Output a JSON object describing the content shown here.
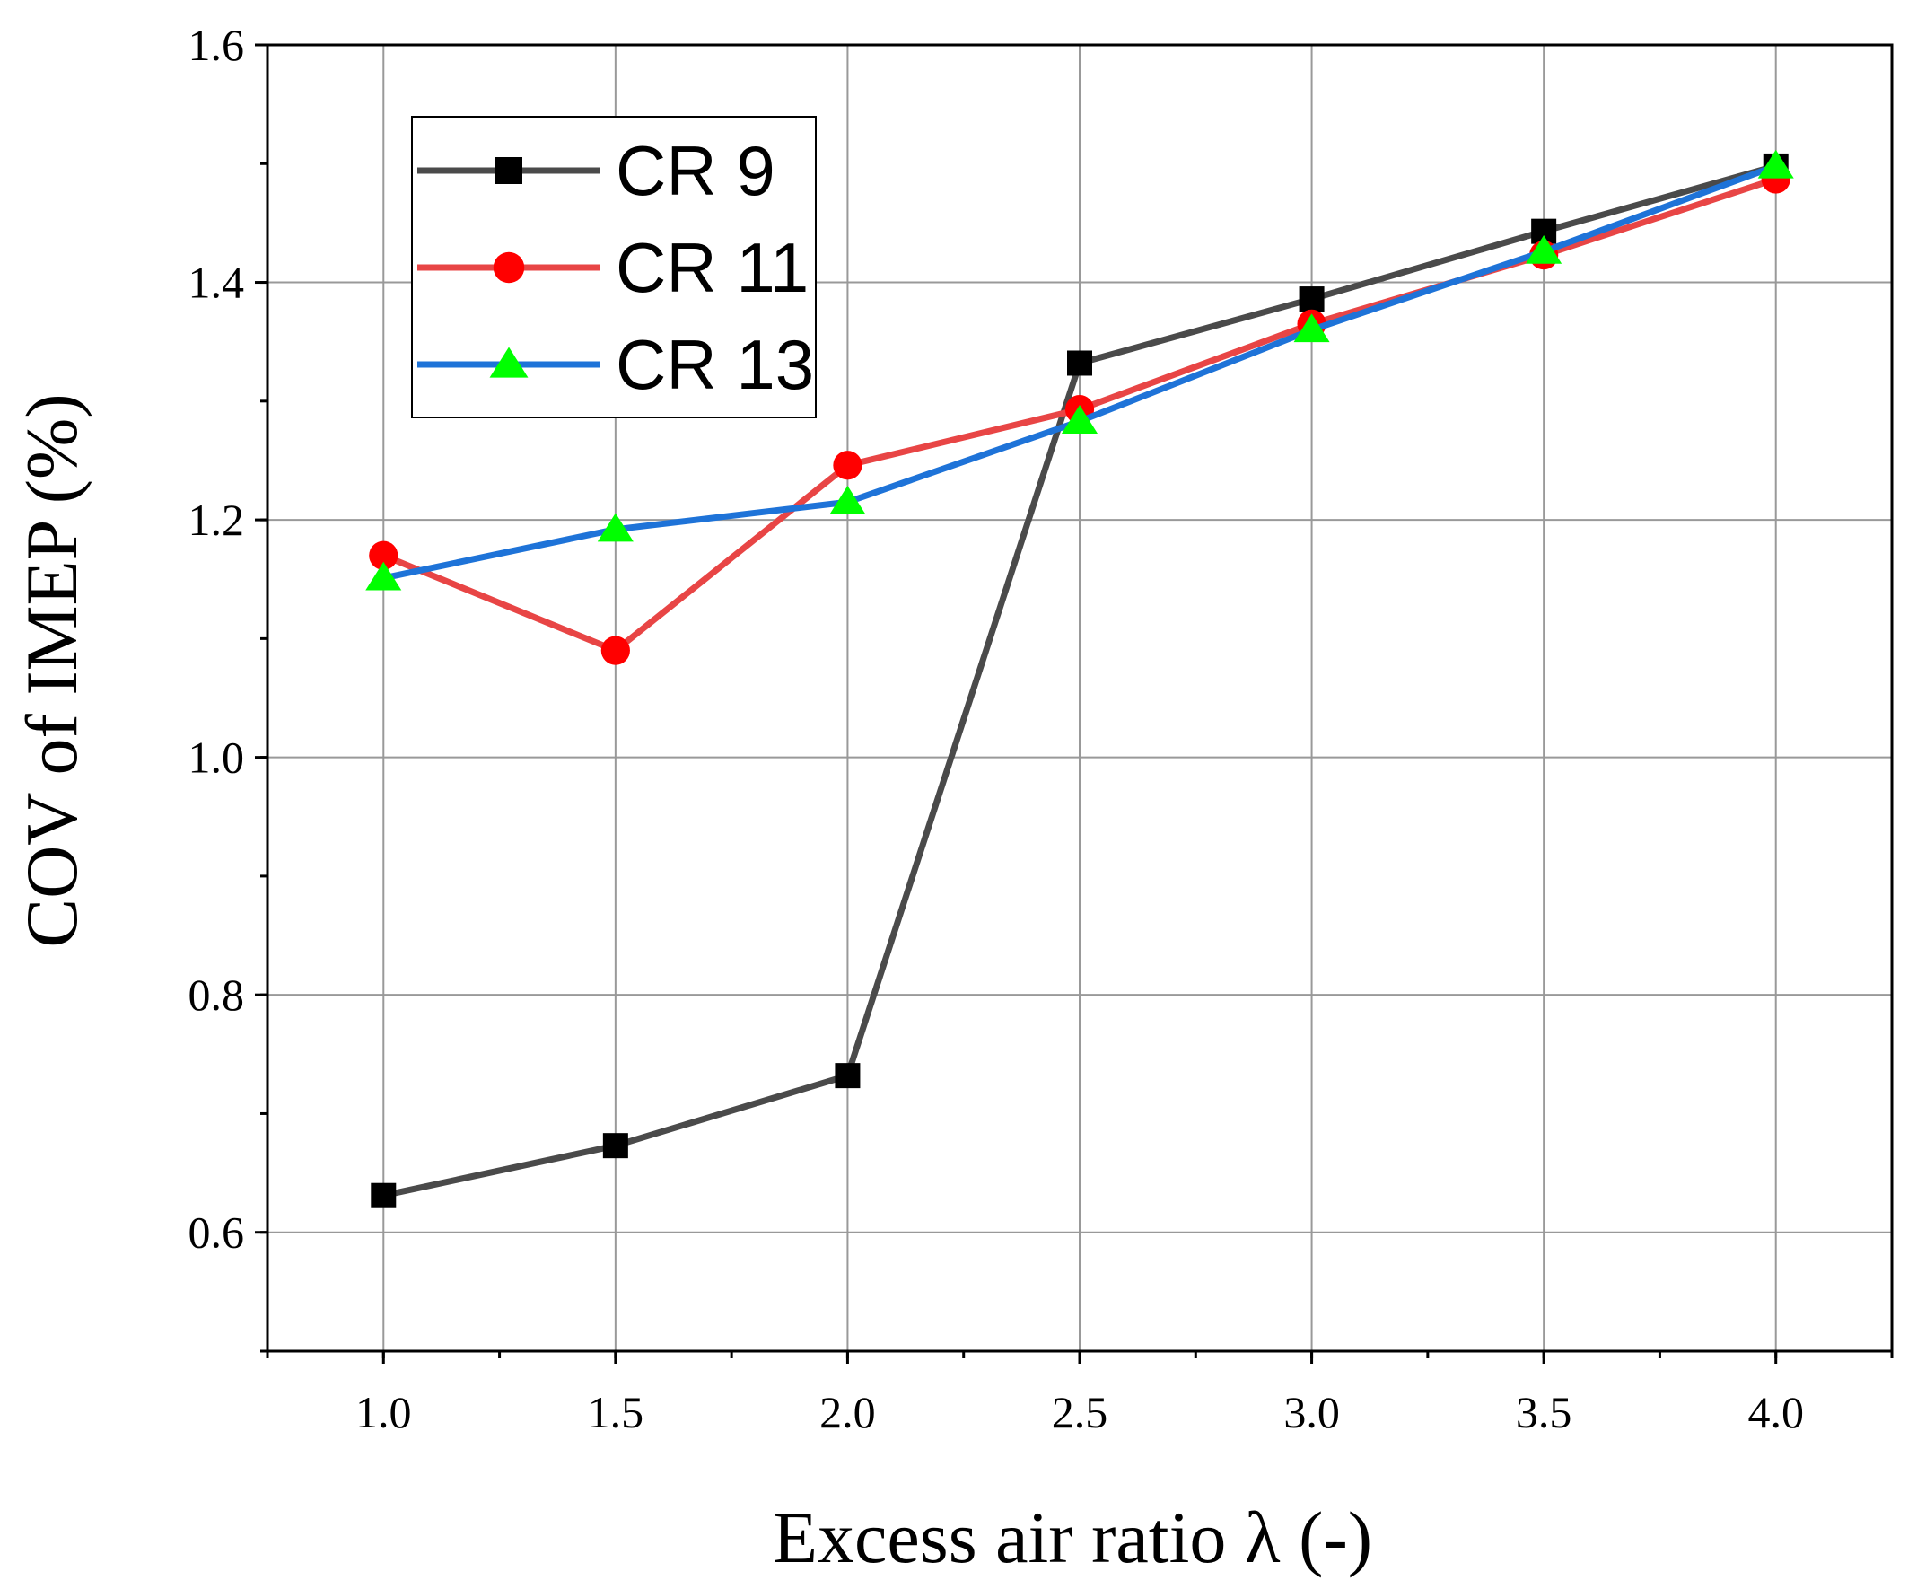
{
  "chart_data": {
    "type": "line",
    "title": "",
    "xlabel": "Excess air ratio λ (-)",
    "ylabel": "COV of IMEP (%)",
    "xlim": [
      0.75,
      4.25
    ],
    "ylim": [
      0.5,
      1.6
    ],
    "grid": true,
    "legend_position": "top-left",
    "x": [
      1.0,
      1.5,
      2.0,
      2.5,
      3.0,
      3.5,
      4.0
    ],
    "x_ticks": [
      "1.0",
      "1.5",
      "2.0",
      "2.5",
      "3.0",
      "3.5",
      "4.0"
    ],
    "y_ticks": [
      "0.6",
      "0.8",
      "1.0",
      "1.2",
      "1.4",
      "1.6"
    ],
    "series": [
      {
        "name": "CR 9",
        "line_color": "#4a4a4a",
        "marker_color": "#000000",
        "marker": "square",
        "values": [
          0.631,
          0.673,
          0.732,
          1.332,
          1.386,
          1.443,
          1.498
        ]
      },
      {
        "name": "CR 11",
        "line_color": "#e84545",
        "marker_color": "#ff0000",
        "marker": "circle",
        "values": [
          1.17,
          1.09,
          1.246,
          1.293,
          1.365,
          1.423,
          1.487
        ]
      },
      {
        "name": "CR 13",
        "line_color": "#1e73d8",
        "marker_color": "#00ff00",
        "marker": "triangle",
        "values": [
          1.151,
          1.192,
          1.215,
          1.283,
          1.36,
          1.426,
          1.498
        ]
      }
    ]
  }
}
